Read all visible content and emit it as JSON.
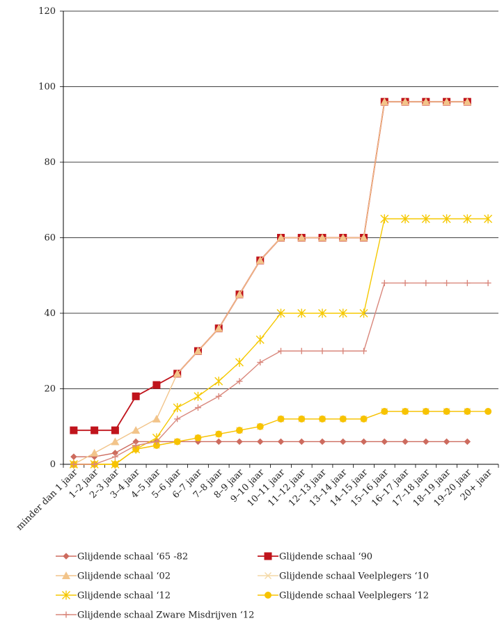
{
  "chart_data": {
    "type": "line",
    "title": "",
    "xlabel": "",
    "ylabel": "",
    "ylim": [
      0,
      120
    ],
    "yticks": [
      0,
      20,
      40,
      60,
      80,
      100,
      120
    ],
    "grid": true,
    "legend_position": "bottom",
    "categories": [
      "minder dan 1 jaar",
      "1–2 jaar",
      "2–3 jaar",
      "3–4 jaar",
      "4–5 jaar",
      "5–6 jaar",
      "6–7 jaar",
      "7–8 jaar",
      "8–9 jaar",
      "9–10 jaar",
      "10–11 jaar",
      "11–12 jaar",
      "12–13 jaar",
      "13–14 jaar",
      "14–15 jaar",
      "15–16 jaar",
      "16–17 jaar",
      "17–18 jaar",
      "18–19 jaar",
      "19–20 jaar",
      "20+ jaar"
    ],
    "series": [
      {
        "name": "Glijdende schaal ‘65 -82",
        "color": "#cd6b5e",
        "marker": "diamond",
        "values": [
          2,
          2,
          3,
          6,
          6,
          6,
          6,
          6,
          6,
          6,
          6,
          6,
          6,
          6,
          6,
          6,
          6,
          6,
          6,
          6,
          null
        ]
      },
      {
        "name": "Glijdende schaal ‘90",
        "color": "#c0141c",
        "marker": "square",
        "values": [
          9,
          9,
          9,
          18,
          21,
          24,
          30,
          36,
          45,
          54,
          60,
          60,
          60,
          60,
          60,
          96,
          96,
          96,
          96,
          96,
          null
        ]
      },
      {
        "name": "Glijdende schaal ‘02",
        "color": "#f2c48a",
        "marker": "triangle",
        "values": [
          0,
          3,
          6,
          9,
          12,
          24,
          30,
          36,
          45,
          54,
          60,
          60,
          60,
          60,
          60,
          96,
          96,
          96,
          96,
          96,
          null
        ]
      },
      {
        "name": "Glijdende schaal Veelplegers ‘10",
        "color": "#f4d9a6",
        "marker": "x",
        "values": [
          0,
          0,
          0,
          4,
          5,
          6,
          7,
          8,
          9,
          10,
          12,
          12,
          12,
          12,
          12,
          14,
          14,
          14,
          14,
          14,
          null
        ]
      },
      {
        "name": "Glijdende schaal ‘12",
        "color": "#f5c800",
        "marker": "star",
        "values": [
          0,
          0,
          0,
          4,
          7,
          15,
          18,
          22,
          27,
          33,
          40,
          40,
          40,
          40,
          40,
          65,
          65,
          65,
          65,
          65,
          65
        ]
      },
      {
        "name": "Glijdende schaal Veelplegers ‘12",
        "color": "#f7c300",
        "marker": "circle",
        "values": [
          0,
          0,
          0,
          4,
          5,
          6,
          7,
          8,
          9,
          10,
          12,
          12,
          12,
          12,
          12,
          14,
          14,
          14,
          14,
          14,
          14
        ]
      },
      {
        "name": "Glijdende schaal Zware Misdrijven ‘12",
        "color": "#d9877c",
        "marker": "plus",
        "values": [
          0,
          0,
          2,
          5,
          6,
          12,
          15,
          18,
          22,
          27,
          30,
          30,
          30,
          30,
          30,
          48,
          48,
          48,
          48,
          48,
          48
        ]
      }
    ]
  }
}
